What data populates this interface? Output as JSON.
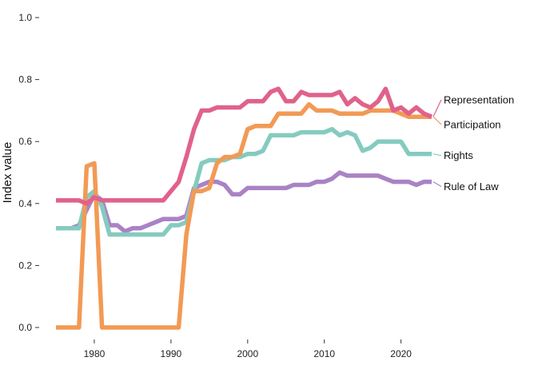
{
  "chart_data": {
    "type": "line",
    "title": "",
    "xlabel": "",
    "ylabel": "Index value",
    "xlim": [
      1975,
      2024
    ],
    "ylim": [
      0,
      1
    ],
    "x_ticks": [
      1980,
      1990,
      2000,
      2010,
      2020
    ],
    "y_ticks": [
      "0.0",
      "0.2",
      "0.4",
      "0.6",
      "0.8",
      "1.0"
    ],
    "grid": false,
    "legend": "direct labels at line ends",
    "series": [
      {
        "name": "Representation",
        "color": "#e0628a",
        "x": [
          1975,
          1976,
          1977,
          1978,
          1979,
          1980,
          1981,
          1982,
          1983,
          1984,
          1985,
          1986,
          1987,
          1988,
          1989,
          1990,
          1991,
          1992,
          1993,
          1994,
          1995,
          1996,
          1997,
          1998,
          1999,
          2000,
          2001,
          2002,
          2003,
          2004,
          2005,
          2006,
          2007,
          2008,
          2009,
          2010,
          2011,
          2012,
          2013,
          2014,
          2015,
          2016,
          2017,
          2018,
          2019,
          2020,
          2021,
          2022,
          2023,
          2024
        ],
        "values": [
          0.41,
          0.41,
          0.41,
          0.41,
          0.4,
          0.42,
          0.41,
          0.41,
          0.41,
          0.41,
          0.41,
          0.41,
          0.41,
          0.41,
          0.41,
          0.44,
          0.47,
          0.55,
          0.64,
          0.7,
          0.7,
          0.71,
          0.71,
          0.71,
          0.71,
          0.73,
          0.73,
          0.73,
          0.76,
          0.77,
          0.73,
          0.73,
          0.76,
          0.75,
          0.75,
          0.75,
          0.75,
          0.76,
          0.72,
          0.74,
          0.72,
          0.71,
          0.73,
          0.77,
          0.7,
          0.71,
          0.69,
          0.71,
          0.69,
          0.68
        ]
      },
      {
        "name": "Participation",
        "color": "#f29a55",
        "x": [
          1975,
          1976,
          1977,
          1978,
          1979,
          1980,
          1981,
          1982,
          1983,
          1984,
          1985,
          1986,
          1987,
          1988,
          1989,
          1990,
          1991,
          1992,
          1993,
          1994,
          1995,
          1996,
          1997,
          1998,
          1999,
          2000,
          2001,
          2002,
          2003,
          2004,
          2005,
          2006,
          2007,
          2008,
          2009,
          2010,
          2011,
          2012,
          2013,
          2014,
          2015,
          2016,
          2017,
          2018,
          2019,
          2020,
          2021,
          2022,
          2023,
          2024
        ],
        "values": [
          0.0,
          0.0,
          0.0,
          0.0,
          0.52,
          0.53,
          0.0,
          0.0,
          0.0,
          0.0,
          0.0,
          0.0,
          0.0,
          0.0,
          0.0,
          0.0,
          0.0,
          0.3,
          0.44,
          0.44,
          0.45,
          0.53,
          0.55,
          0.55,
          0.56,
          0.64,
          0.65,
          0.65,
          0.65,
          0.69,
          0.69,
          0.69,
          0.69,
          0.72,
          0.7,
          0.7,
          0.7,
          0.69,
          0.69,
          0.69,
          0.69,
          0.7,
          0.7,
          0.7,
          0.7,
          0.69,
          0.68,
          0.68,
          0.68,
          0.68
        ]
      },
      {
        "name": "Rights",
        "color": "#85cbbf",
        "x": [
          1975,
          1976,
          1977,
          1978,
          1979,
          1980,
          1981,
          1982,
          1983,
          1984,
          1985,
          1986,
          1987,
          1988,
          1989,
          1990,
          1991,
          1992,
          1993,
          1994,
          1995,
          1996,
          1997,
          1998,
          1999,
          2000,
          2001,
          2002,
          2003,
          2004,
          2005,
          2006,
          2007,
          2008,
          2009,
          2010,
          2011,
          2012,
          2013,
          2014,
          2015,
          2016,
          2017,
          2018,
          2019,
          2020,
          2021,
          2022,
          2023,
          2024
        ],
        "values": [
          0.32,
          0.32,
          0.32,
          0.32,
          0.42,
          0.44,
          0.39,
          0.3,
          0.3,
          0.3,
          0.3,
          0.3,
          0.3,
          0.3,
          0.3,
          0.33,
          0.33,
          0.34,
          0.44,
          0.53,
          0.54,
          0.54,
          0.54,
          0.55,
          0.55,
          0.56,
          0.56,
          0.57,
          0.62,
          0.62,
          0.62,
          0.62,
          0.63,
          0.63,
          0.63,
          0.63,
          0.64,
          0.62,
          0.63,
          0.62,
          0.57,
          0.58,
          0.6,
          0.6,
          0.6,
          0.6,
          0.56,
          0.56,
          0.56,
          0.56
        ]
      },
      {
        "name": "Rule of Law",
        "color": "#a983c5",
        "x": [
          1975,
          1976,
          1977,
          1978,
          1979,
          1980,
          1981,
          1982,
          1983,
          1984,
          1985,
          1986,
          1987,
          1988,
          1989,
          1990,
          1991,
          1992,
          1993,
          1994,
          1995,
          1996,
          1997,
          1998,
          1999,
          2000,
          2001,
          2002,
          2003,
          2004,
          2005,
          2006,
          2007,
          2008,
          2009,
          2010,
          2011,
          2012,
          2013,
          2014,
          2015,
          2016,
          2017,
          2018,
          2019,
          2020,
          2021,
          2022,
          2023,
          2024
        ],
        "values": [
          0.32,
          0.32,
          0.32,
          0.33,
          0.38,
          0.43,
          0.41,
          0.33,
          0.33,
          0.31,
          0.32,
          0.32,
          0.33,
          0.34,
          0.35,
          0.35,
          0.35,
          0.36,
          0.45,
          0.46,
          0.47,
          0.47,
          0.46,
          0.43,
          0.43,
          0.45,
          0.45,
          0.45,
          0.45,
          0.45,
          0.45,
          0.46,
          0.46,
          0.46,
          0.47,
          0.47,
          0.48,
          0.5,
          0.49,
          0.49,
          0.49,
          0.49,
          0.49,
          0.48,
          0.47,
          0.47,
          0.47,
          0.46,
          0.47,
          0.47
        ]
      }
    ],
    "labels": [
      {
        "series": "Representation",
        "text": "Representation",
        "at_value": 0.735
      },
      {
        "series": "Participation",
        "text": "Participation",
        "at_value": 0.655
      },
      {
        "series": "Rights",
        "text": "Rights",
        "at_value": 0.555
      },
      {
        "series": "Rule of Law",
        "text": "Rule of Law",
        "at_value": 0.455
      }
    ]
  }
}
